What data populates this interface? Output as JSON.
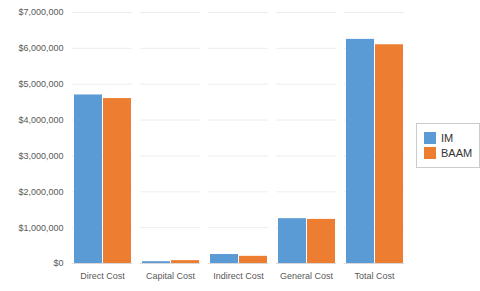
{
  "chart_data": {
    "type": "bar",
    "categories": [
      "Direct Cost",
      "Capital Cost",
      "Indirect Cost",
      "General Cost",
      "Total Cost"
    ],
    "series": [
      {
        "name": "IM",
        "color": "#5b9bd5",
        "values": [
          4700000,
          50000,
          250000,
          1250000,
          6250000
        ]
      },
      {
        "name": "BAAM",
        "color": "#ed7d31",
        "values": [
          4600000,
          80000,
          200000,
          1230000,
          6100000
        ]
      }
    ],
    "ylim": [
      0,
      7000000
    ],
    "yticks": [
      {
        "value": 0,
        "label": "$0"
      },
      {
        "value": 1000000,
        "label": "$1,000,000"
      },
      {
        "value": 2000000,
        "label": "$2,000,000"
      },
      {
        "value": 3000000,
        "label": "$3,000,000"
      },
      {
        "value": 4000000,
        "label": "$4,000,000"
      },
      {
        "value": 5000000,
        "label": "$5,000,000"
      },
      {
        "value": 6000000,
        "label": "$6,000,000"
      },
      {
        "value": 7000000,
        "label": "$7,000,000"
      }
    ],
    "grid": true,
    "legend": "right"
  }
}
